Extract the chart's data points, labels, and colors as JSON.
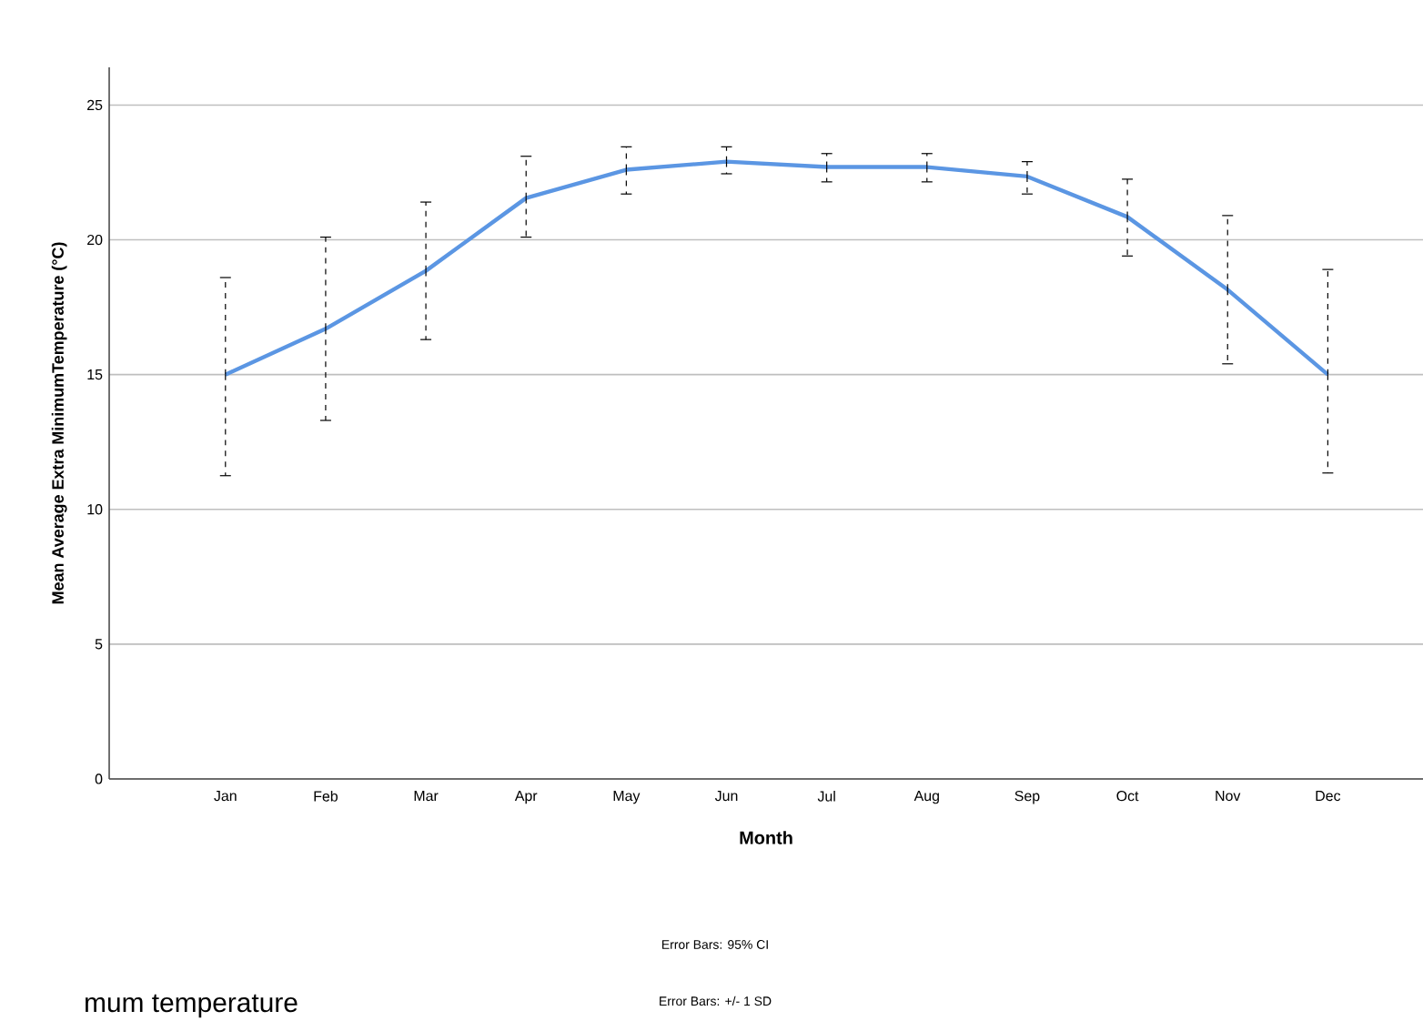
{
  "chart_data": {
    "type": "line",
    "xlabel": "Month",
    "ylabel": "Mean Average Extra MinimumTemperature (°C)",
    "categories": [
      "Jan",
      "Feb",
      "Mar",
      "Apr",
      "May",
      "Jun",
      "Jul",
      "Aug",
      "Sep",
      "Oct",
      "Nov",
      "Dec"
    ],
    "series": [
      {
        "color": "#5b96e3",
        "values": [
          15.0,
          16.7,
          18.85,
          21.55,
          22.6,
          22.9,
          22.7,
          22.7,
          22.35,
          20.85,
          18.15,
          15.0
        ],
        "errors": [
          [
            11.25,
            18.6
          ],
          [
            13.3,
            20.1
          ],
          [
            16.3,
            21.4
          ],
          [
            20.1,
            23.1
          ],
          [
            21.7,
            23.45
          ],
          [
            22.45,
            23.45
          ],
          [
            22.15,
            23.2
          ],
          [
            22.15,
            23.2
          ],
          [
            21.7,
            22.9
          ],
          [
            19.4,
            22.25
          ],
          [
            15.4,
            20.9
          ],
          [
            11.35,
            18.9
          ]
        ]
      }
    ],
    "ylim": [
      0,
      26.4
    ],
    "yticks": [
      0,
      5,
      10,
      15,
      20,
      25
    ],
    "grid": "y",
    "marker": "none",
    "line_style": "solid",
    "annotations": [
      "Error Bars: 95% CI",
      "Error Bars: +/- 1 SD",
      "mum temperature"
    ]
  }
}
